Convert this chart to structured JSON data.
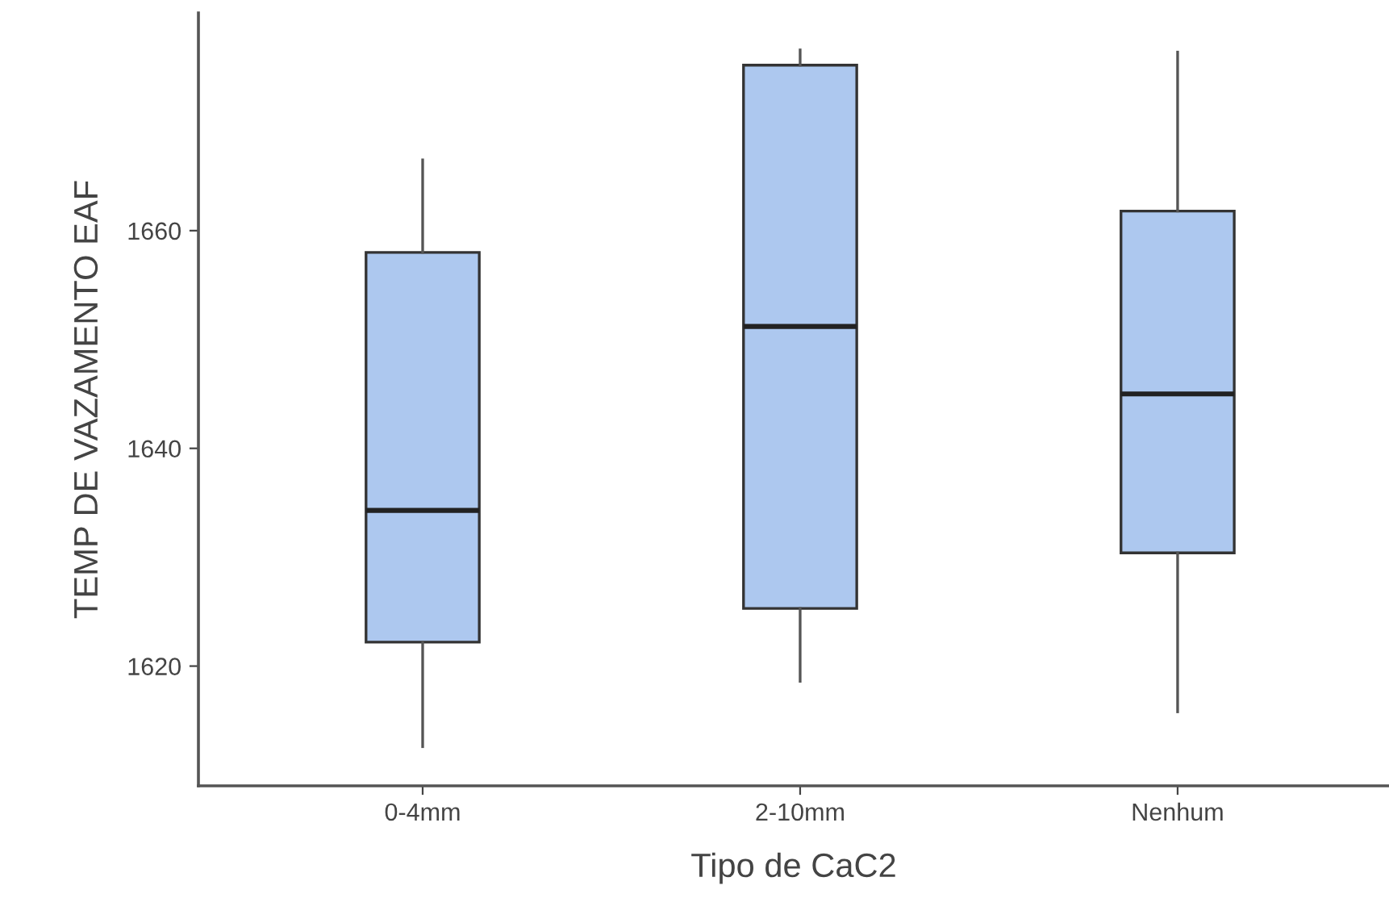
{
  "chart_data": {
    "type": "box",
    "xlabel": "Tipo de CaC2",
    "ylabel": "TEMP DE VAZAMENTO EAF",
    "categories": [
      "0-4mm",
      "2-10mm",
      "Nenhum"
    ],
    "color": "#adc8ef",
    "boxes": [
      {
        "low": 1612.6,
        "q1": 1622.2,
        "median": 1634.3,
        "q3": 1658.0,
        "high": 1666.5
      },
      {
        "low": 1618.6,
        "q1": 1625.3,
        "median": 1651.2,
        "q3": 1675.2,
        "high": 1676.6
      },
      {
        "low": 1615.8,
        "q1": 1630.4,
        "median": 1645.0,
        "q3": 1661.8,
        "high": 1676.4
      }
    ],
    "ylim": [
      1609,
      1680
    ],
    "yticks": [
      1620,
      1640,
      1660
    ],
    "grid": false,
    "legend": false
  }
}
